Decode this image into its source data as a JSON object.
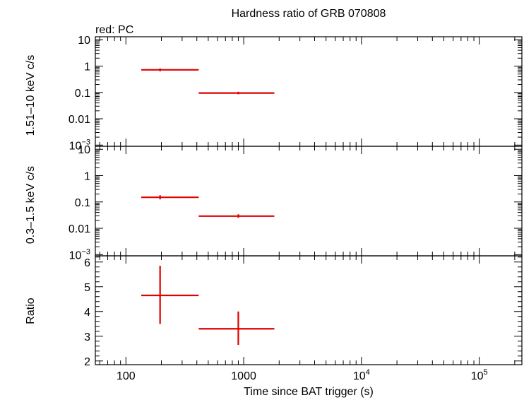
{
  "chart_data": {
    "type": "scatter",
    "title": "Hardness ratio of GRB 070808",
    "legend_note": "red: PC",
    "xlabel": "Time since BAT trigger (s)",
    "xscale": "log",
    "xlim": [
      55,
      230000
    ],
    "x_ticks": [
      {
        "value": 100,
        "base": "100",
        "exp": ""
      },
      {
        "value": 1000,
        "base": "1000",
        "exp": ""
      },
      {
        "value": 10000,
        "base": "10",
        "exp": "4"
      },
      {
        "value": 100000,
        "base": "10",
        "exp": "5"
      }
    ],
    "panels": [
      {
        "ylabel": "1.51–10 keV c/s",
        "yscale": "log",
        "ylim": [
          0.0009,
          13
        ],
        "y_ticks": [
          {
            "value": 10,
            "base": "10",
            "exp": ""
          },
          {
            "value": 1,
            "base": "1",
            "exp": ""
          },
          {
            "value": 0.1,
            "base": "0.1",
            "exp": ""
          },
          {
            "value": 0.01,
            "base": "0.01",
            "exp": ""
          },
          {
            "value": 0.001,
            "base": "10",
            "exp": "−3"
          }
        ],
        "series": [
          {
            "color": "#e00000",
            "points": [
              {
                "x": 195,
                "xlo": 135,
                "xhi": 415,
                "y": 0.72,
                "ylo": 0.63,
                "yhi": 0.82
              },
              {
                "x": 900,
                "xlo": 415,
                "xhi": 1820,
                "y": 0.095,
                "ylo": 0.085,
                "yhi": 0.106
              }
            ]
          }
        ]
      },
      {
        "ylabel": "0.3–1.5 keV c/s",
        "yscale": "log",
        "ylim": [
          0.0009,
          13
        ],
        "y_ticks": [
          {
            "value": 10,
            "base": "10",
            "exp": ""
          },
          {
            "value": 1,
            "base": "1",
            "exp": ""
          },
          {
            "value": 0.1,
            "base": "0.1",
            "exp": ""
          },
          {
            "value": 0.01,
            "base": "0.01",
            "exp": ""
          },
          {
            "value": 0.001,
            "base": "10",
            "exp": "−3"
          }
        ],
        "series": [
          {
            "color": "#e00000",
            "points": [
              {
                "x": 195,
                "xlo": 135,
                "xhi": 415,
                "y": 0.15,
                "ylo": 0.125,
                "yhi": 0.18
              },
              {
                "x": 900,
                "xlo": 415,
                "xhi": 1820,
                "y": 0.029,
                "ylo": 0.025,
                "yhi": 0.034
              }
            ]
          }
        ]
      },
      {
        "ylabel": "Ratio",
        "yscale": "linear",
        "ylim": [
          1.85,
          6.25
        ],
        "y_ticks": [
          {
            "value": 2,
            "base": "2",
            "exp": ""
          },
          {
            "value": 3,
            "base": "3",
            "exp": ""
          },
          {
            "value": 4,
            "base": "4",
            "exp": ""
          },
          {
            "value": 5,
            "base": "5",
            "exp": ""
          },
          {
            "value": 6,
            "base": "6",
            "exp": ""
          }
        ],
        "series": [
          {
            "color": "#e00000",
            "points": [
              {
                "x": 195,
                "xlo": 135,
                "xhi": 415,
                "y": 4.65,
                "ylo": 3.5,
                "yhi": 5.85
              },
              {
                "x": 900,
                "xlo": 415,
                "xhi": 1820,
                "y": 3.3,
                "ylo": 2.65,
                "yhi": 4.0
              }
            ]
          }
        ]
      }
    ],
    "shared_ylabel": "c/s"
  }
}
